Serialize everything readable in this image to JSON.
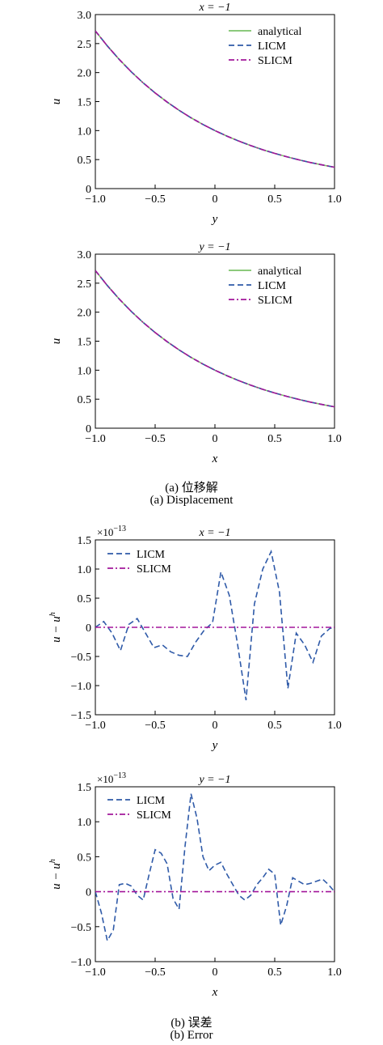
{
  "colors": {
    "analytical": "#7cc36a",
    "licm": "#2f5aa8",
    "slicm": "#a3179b",
    "axis": "#000000"
  },
  "captions": {
    "a_cn": "(a) 位移解",
    "a_en": "(a) Displacement",
    "b_cn": "(b) 误差",
    "b_en": "(b) Error"
  },
  "chart_data": [
    {
      "type": "line",
      "title": "x = −1",
      "xlabel": "y",
      "ylabel": "u",
      "xlim": [
        -1.0,
        1.0
      ],
      "ylim": [
        0,
        3.0
      ],
      "xticks": [
        -1.0,
        -0.5,
        0,
        0.5,
        1.0
      ],
      "xtick_labels": [
        "−1.0",
        "−0.5",
        "0",
        "0.5",
        "1.0"
      ],
      "yticks": [
        0,
        0.5,
        1.0,
        1.5,
        2.0,
        2.5,
        3.0
      ],
      "ytick_labels": [
        "0",
        "0.5",
        "1.0",
        "1.5",
        "2.0",
        "2.5",
        "3.0"
      ],
      "legend_position": "top-right",
      "series": [
        {
          "name": "analytical",
          "style": "solid",
          "x": [
            -1.0,
            -0.9,
            -0.8,
            -0.7,
            -0.6,
            -0.5,
            -0.4,
            -0.3,
            -0.2,
            -0.1,
            0,
            0.1,
            0.2,
            0.3,
            0.4,
            0.5,
            0.6,
            0.7,
            0.8,
            0.9,
            1.0
          ],
          "y": [
            2.718,
            2.46,
            2.226,
            2.014,
            1.822,
            1.649,
            1.492,
            1.35,
            1.221,
            1.105,
            1.0,
            0.905,
            0.819,
            0.741,
            0.67,
            0.607,
            0.549,
            0.497,
            0.449,
            0.407,
            0.368
          ]
        },
        {
          "name": "LICM",
          "style": "dashed",
          "x": [
            -1.0,
            -0.9,
            -0.8,
            -0.7,
            -0.6,
            -0.5,
            -0.4,
            -0.3,
            -0.2,
            -0.1,
            0,
            0.1,
            0.2,
            0.3,
            0.4,
            0.5,
            0.6,
            0.7,
            0.8,
            0.9,
            1.0
          ],
          "y": [
            2.718,
            2.46,
            2.226,
            2.014,
            1.822,
            1.649,
            1.492,
            1.35,
            1.221,
            1.105,
            1.0,
            0.905,
            0.819,
            0.741,
            0.67,
            0.607,
            0.549,
            0.497,
            0.449,
            0.407,
            0.368
          ]
        },
        {
          "name": "SLICM",
          "style": "dashdot",
          "x": [
            -1.0,
            -0.9,
            -0.8,
            -0.7,
            -0.6,
            -0.5,
            -0.4,
            -0.3,
            -0.2,
            -0.1,
            0,
            0.1,
            0.2,
            0.3,
            0.4,
            0.5,
            0.6,
            0.7,
            0.8,
            0.9,
            1.0
          ],
          "y": [
            2.718,
            2.46,
            2.226,
            2.014,
            1.822,
            1.649,
            1.492,
            1.35,
            1.221,
            1.105,
            1.0,
            0.905,
            0.819,
            0.741,
            0.67,
            0.607,
            0.549,
            0.497,
            0.449,
            0.407,
            0.368
          ]
        }
      ]
    },
    {
      "type": "line",
      "title": "y = −1",
      "xlabel": "x",
      "ylabel": "u",
      "xlim": [
        -1.0,
        1.0
      ],
      "ylim": [
        0,
        3.0
      ],
      "xticks": [
        -1.0,
        -0.5,
        0,
        0.5,
        1.0
      ],
      "xtick_labels": [
        "−1.0",
        "−0.5",
        "0",
        "0.5",
        "1.0"
      ],
      "yticks": [
        0,
        0.5,
        1.0,
        1.5,
        2.0,
        2.5,
        3.0
      ],
      "ytick_labels": [
        "0",
        "0.5",
        "1.0",
        "1.5",
        "2.0",
        "2.5",
        "3.0"
      ],
      "legend_position": "top-right",
      "series": [
        {
          "name": "analytical",
          "style": "solid",
          "x": [
            -1.0,
            -0.9,
            -0.8,
            -0.7,
            -0.6,
            -0.5,
            -0.4,
            -0.3,
            -0.2,
            -0.1,
            0,
            0.1,
            0.2,
            0.3,
            0.4,
            0.5,
            0.6,
            0.7,
            0.8,
            0.9,
            1.0
          ],
          "y": [
            2.718,
            2.46,
            2.226,
            2.014,
            1.822,
            1.649,
            1.492,
            1.35,
            1.221,
            1.105,
            1.0,
            0.905,
            0.819,
            0.741,
            0.67,
            0.607,
            0.549,
            0.497,
            0.449,
            0.407,
            0.368
          ]
        },
        {
          "name": "LICM",
          "style": "dashed",
          "x": [
            -1.0,
            -0.9,
            -0.8,
            -0.7,
            -0.6,
            -0.5,
            -0.4,
            -0.3,
            -0.2,
            -0.1,
            0,
            0.1,
            0.2,
            0.3,
            0.4,
            0.5,
            0.6,
            0.7,
            0.8,
            0.9,
            1.0
          ],
          "y": [
            2.718,
            2.46,
            2.226,
            2.014,
            1.822,
            1.649,
            1.492,
            1.35,
            1.221,
            1.105,
            1.0,
            0.905,
            0.819,
            0.741,
            0.67,
            0.607,
            0.549,
            0.497,
            0.449,
            0.407,
            0.368
          ]
        },
        {
          "name": "SLICM",
          "style": "dashdot",
          "x": [
            -1.0,
            -0.9,
            -0.8,
            -0.7,
            -0.6,
            -0.5,
            -0.4,
            -0.3,
            -0.2,
            -0.1,
            0,
            0.1,
            0.2,
            0.3,
            0.4,
            0.5,
            0.6,
            0.7,
            0.8,
            0.9,
            1.0
          ],
          "y": [
            2.718,
            2.46,
            2.226,
            2.014,
            1.822,
            1.649,
            1.492,
            1.35,
            1.221,
            1.105,
            1.0,
            0.905,
            0.819,
            0.741,
            0.67,
            0.607,
            0.549,
            0.497,
            0.449,
            0.407,
            0.368
          ]
        }
      ]
    },
    {
      "type": "line",
      "title": "x = −1",
      "xlabel": "y",
      "ylabel": "u − u^h",
      "ylabel_main": "u − u",
      "ylabel_sup": "h",
      "scale_label": "×10",
      "scale_exp": "−13",
      "xlim": [
        -1.0,
        1.0
      ],
      "ylim": [
        -1.5,
        1.5
      ],
      "xticks": [
        -1.0,
        -0.5,
        0,
        0.5,
        1.0
      ],
      "xtick_labels": [
        "−1.0",
        "−0.5",
        "0",
        "0.5",
        "1.0"
      ],
      "yticks": [
        -1.5,
        -1.0,
        -0.5,
        0,
        0.5,
        1.0,
        1.5
      ],
      "ytick_labels": [
        "−1.5",
        "−1.0",
        "−0.5",
        "0",
        "0.5",
        "1.0",
        "1.5"
      ],
      "legend_position": "top-left",
      "series": [
        {
          "name": "LICM",
          "style": "dashed",
          "x": [
            -1.0,
            -0.93,
            -0.86,
            -0.79,
            -0.72,
            -0.65,
            -0.58,
            -0.51,
            -0.44,
            -0.37,
            -0.3,
            -0.23,
            -0.16,
            -0.09,
            -0.02,
            0.05,
            0.12,
            0.19,
            0.26,
            0.33,
            0.4,
            0.47,
            0.54,
            0.61,
            0.68,
            0.75,
            0.82,
            0.89,
            0.96,
            1.0
          ],
          "y": [
            0,
            0.1,
            -0.1,
            -0.4,
            0.05,
            0.15,
            -0.1,
            -0.35,
            -0.3,
            -0.42,
            -0.48,
            -0.5,
            -0.25,
            -0.05,
            0.08,
            0.95,
            0.55,
            -0.3,
            -1.25,
            0.4,
            1.0,
            1.3,
            0.6,
            -1.05,
            -0.1,
            -0.3,
            -0.6,
            -0.15,
            -0.02,
            0
          ]
        },
        {
          "name": "SLICM",
          "style": "dashdot",
          "x": [
            -1.0,
            1.0
          ],
          "y": [
            0,
            0
          ]
        }
      ]
    },
    {
      "type": "line",
      "title": "y = −1",
      "xlabel": "x",
      "ylabel": "u − u^h",
      "ylabel_main": "u − u",
      "ylabel_sup": "h",
      "scale_label": "×10",
      "scale_exp": "−13",
      "xlim": [
        -1.0,
        1.0
      ],
      "ylim": [
        -1.0,
        1.5
      ],
      "xticks": [
        -1.0,
        -0.5,
        0,
        0.5,
        1.0
      ],
      "xtick_labels": [
        "−1.0",
        "−0.5",
        "0",
        "0.5",
        "1.0"
      ],
      "yticks": [
        -1.0,
        -0.5,
        0,
        0.5,
        1.0,
        1.5
      ],
      "ytick_labels": [
        "−1.0",
        "−0.5",
        "0",
        "0.5",
        "1.0",
        "1.5"
      ],
      "legend_position": "top-left",
      "series": [
        {
          "name": "LICM",
          "style": "dashed",
          "x": [
            -1.0,
            -0.95,
            -0.9,
            -0.85,
            -0.8,
            -0.75,
            -0.7,
            -0.65,
            -0.6,
            -0.55,
            -0.5,
            -0.45,
            -0.4,
            -0.35,
            -0.3,
            -0.25,
            -0.2,
            -0.15,
            -0.1,
            -0.05,
            0,
            0.05,
            0.1,
            0.15,
            0.2,
            0.25,
            0.3,
            0.35,
            0.4,
            0.45,
            0.5,
            0.55,
            0.6,
            0.65,
            0.7,
            0.75,
            0.8,
            0.85,
            0.9,
            0.95,
            1.0
          ],
          "y": [
            0,
            -0.3,
            -0.7,
            -0.55,
            0.1,
            0.12,
            0.08,
            -0.05,
            -0.12,
            0.25,
            0.6,
            0.55,
            0.4,
            -0.1,
            -0.25,
            0.65,
            1.4,
            1.05,
            0.5,
            0.3,
            0.38,
            0.42,
            0.25,
            0.1,
            -0.05,
            -0.12,
            -0.05,
            0.1,
            0.2,
            0.32,
            0.25,
            -0.48,
            -0.2,
            0.2,
            0.15,
            0.1,
            0.12,
            0.15,
            0.18,
            0.1,
            0
          ]
        },
        {
          "name": "SLICM",
          "style": "dashdot",
          "x": [
            -1.0,
            1.0
          ],
          "y": [
            0,
            0
          ]
        }
      ]
    }
  ]
}
